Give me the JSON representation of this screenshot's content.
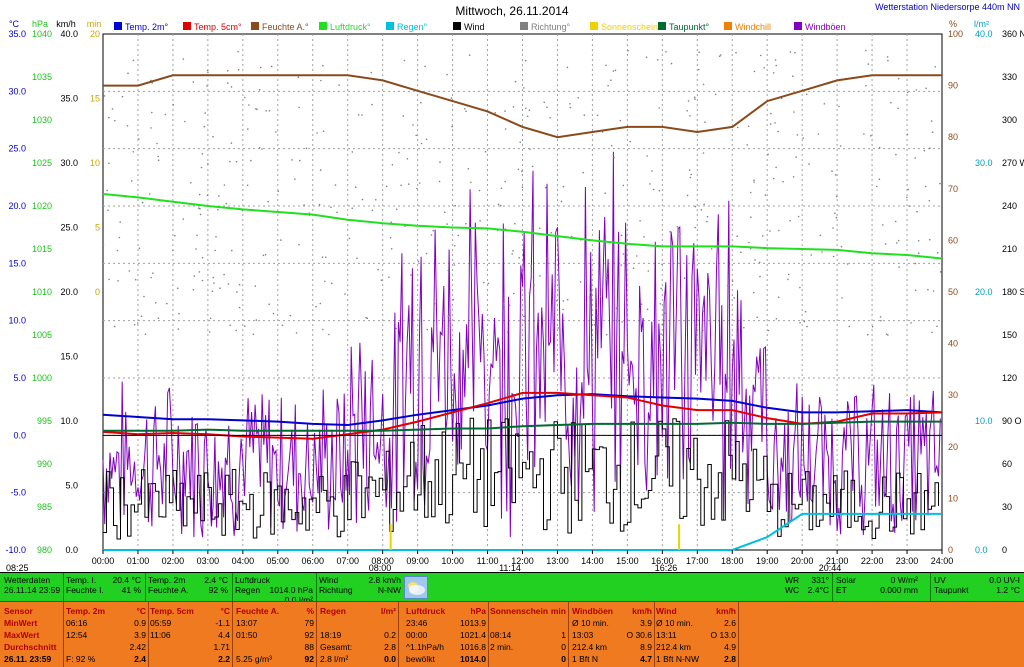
{
  "title": "Mittwoch, 26.11.2014",
  "station": "Wetterstation Niedersorpe 440m NN",
  "colors": {
    "temp2m": "#0000d0",
    "temp5cm": "#e00000",
    "feuchte": "#8b4a1a",
    "luftdruck": "#20e020",
    "regen": "#00c0e0",
    "wind": "#000000",
    "richtung": "#808080",
    "sonne": "#f0d000",
    "taupunkt": "#006a30",
    "windchill": "#f08000",
    "windboeen": "#8000c0"
  },
  "legend": [
    "Temp. 2m°",
    "Temp. 5cm°",
    "Feuchte A.°",
    "Luftdruck°",
    "Regen°",
    "Wind",
    "Richtung°",
    "Sonnenschein",
    "Taupunkt°",
    "Windchill",
    "Windböen"
  ],
  "axis_units": {
    "celsius": "°C",
    "hpa": "hPa",
    "kmh": "km/h",
    "min": "min",
    "percent": "%",
    "lm2": "l/m²",
    "deg": "360 N"
  },
  "left_axes": {
    "celsius": [
      "35.0",
      "30.0",
      "25.0",
      "20.0",
      "15.0",
      "10.0",
      "5.0",
      "0.0",
      "-5.0",
      "-10.0"
    ],
    "hpa": [
      "1040",
      "1035",
      "1030",
      "1025",
      "1020",
      "1015",
      "1010",
      "1005",
      "1000",
      "995",
      "990",
      "985",
      "980"
    ],
    "kmh": [
      "40.0",
      "35.0",
      "30.0",
      "25.0",
      "20.0",
      "15.0",
      "10.0",
      "5.0",
      "0.0"
    ],
    "min": [
      "20",
      "15",
      "10",
      "5",
      "0"
    ]
  },
  "right_axes": {
    "percent": [
      "100",
      "90",
      "80",
      "70",
      "60",
      "50",
      "40",
      "30",
      "20",
      "10",
      "0"
    ],
    "lm2": [
      "40.0",
      "30.0",
      "20.0",
      "10.0",
      "0.0"
    ],
    "deg": [
      "330",
      "300",
      "270 W",
      "240",
      "210",
      "180 S",
      "150",
      "120",
      "90 O",
      "60",
      "30",
      "0"
    ]
  },
  "sun_markers": {
    "rise": "08:25",
    "set": "20:44",
    "noon1": "11:14",
    "noon2": "16:26",
    "b": "08:00",
    "c": "8:00"
  },
  "chart_data": {
    "type": "line",
    "title": "Mittwoch, 26.11.2014",
    "x_ticks": [
      "00:00",
      "01:00",
      "02:00",
      "03:00",
      "04:00",
      "05:00",
      "06:00",
      "07:00",
      "08:00",
      "09:00",
      "10:00",
      "11:00",
      "12:00",
      "13:00",
      "14:00",
      "15:00",
      "16:00",
      "17:00",
      "18:00",
      "19:00",
      "20:00",
      "21:00",
      "22:00",
      "23:00",
      "24:00"
    ],
    "x_hours": [
      0,
      1,
      2,
      3,
      4,
      5,
      6,
      7,
      8,
      9,
      10,
      11,
      12,
      13,
      14,
      15,
      16,
      17,
      18,
      19,
      20,
      21,
      22,
      23,
      24
    ],
    "series": [
      {
        "name": "Temp. 2m°",
        "unit": "°C",
        "values": [
          1.8,
          1.6,
          1.4,
          1.4,
          1.3,
          1.2,
          1.0,
          0.9,
          1.3,
          1.8,
          2.2,
          2.6,
          3.2,
          3.5,
          3.6,
          3.4,
          3.3,
          3.2,
          3.0,
          2.4,
          2.0,
          2.0,
          2.1,
          2.2,
          2.0
        ]
      },
      {
        "name": "Temp. 5cm°",
        "unit": "°C",
        "values": [
          0.3,
          0.1,
          0.2,
          0.1,
          -0.1,
          -0.2,
          -0.3,
          0.1,
          0.5,
          1.2,
          2.0,
          2.8,
          3.7,
          3.7,
          3.5,
          3.3,
          2.6,
          2.2,
          2.2,
          1.5,
          1.0,
          1.2,
          1.9,
          1.9,
          2.0
        ]
      },
      {
        "name": "Feuchte A.°",
        "unit": "%",
        "values": [
          90,
          90,
          92,
          92,
          92,
          92,
          92,
          92,
          91,
          89,
          87,
          85,
          82,
          80,
          81,
          82,
          82,
          81,
          82,
          87,
          89,
          91,
          92,
          92,
          92
        ]
      },
      {
        "name": "Luftdruck°",
        "unit": "hPa",
        "values": [
          1021.4,
          1021.0,
          1020.5,
          1020.0,
          1019.6,
          1019.3,
          1019.0,
          1018.4,
          1018.0,
          1017.7,
          1017.5,
          1017.4,
          1017.0,
          1016.5,
          1016.0,
          1015.6,
          1015.3,
          1015.3,
          1015.3,
          1015.1,
          1015.0,
          1014.9,
          1014.5,
          1014.3,
          1013.9
        ]
      },
      {
        "name": "Taupunkt°",
        "unit": "°C",
        "values": [
          0.4,
          0.4,
          0.4,
          0.5,
          0.4,
          0.4,
          0.4,
          0.4,
          0.4,
          0.5,
          0.6,
          0.6,
          0.8,
          0.9,
          1.0,
          1.0,
          1.0,
          1.0,
          1.1,
          1.0,
          1.0,
          1.1,
          1.2,
          1.2,
          1.2
        ]
      },
      {
        "name": "Regen°",
        "unit": "l/m²",
        "values": [
          0,
          0,
          0,
          0,
          0,
          0,
          0,
          0,
          0,
          0,
          0,
          0,
          0,
          0,
          0,
          0,
          0,
          0,
          0,
          1.0,
          2.8,
          2.8,
          2.8,
          2.8,
          2.8
        ]
      }
    ],
    "xlabel": "",
    "ylabel": "",
    "ylim": [
      -10,
      35
    ]
  },
  "green_bar": {
    "wetterdaten": "Wetterdaten",
    "datetime": "26.11.14 23:59",
    "temp_i_label": "Temp. I.",
    "temp_i_val": "20.4 °C",
    "feuchte_i_label": "Feuchte I.",
    "feuchte_i_val": "41 %",
    "temp2m_label": "Temp. 2m",
    "temp2m_val": "2.4 °C",
    "feuchte_a_label": "Feuchte A.",
    "feuchte_a_val": "92 %",
    "luftdruck_label": "Luftdruck",
    "luftdruck_val": "1014.0 hPa",
    "regen_label": "Regen",
    "regen_val": "0.0 l/m²",
    "wind_label": "Wind",
    "wind_val": "2.8 km/h",
    "richtung_label": "Richtung",
    "richtung_val": "N-NW",
    "wr_label": "WR",
    "wr_val": "331°",
    "wc_label": "WC",
    "wc_val": "2.4°C",
    "solar_label": "Solar",
    "solar_val": "0 W/m²",
    "et_label": "ET",
    "et_val": "0.000 mm",
    "uv_label": "UV",
    "uv_val": "0.0 UV-I",
    "taupunkt_label": "Taupunkt",
    "taupunkt_val": "1.2 °C"
  },
  "stats": {
    "sensor": {
      "hdr": "Sensor",
      "rows": [
        "MinWert",
        "MaxWert",
        "Durchschnitt",
        "26.11. 23:59"
      ]
    },
    "temp2m": {
      "hdr": "Temp. 2m",
      "unit": "°C",
      "rows": [
        [
          "06:16",
          "0.9"
        ],
        [
          "12:54",
          "3.9"
        ],
        [
          "",
          "2.42"
        ],
        [
          "F: 92 %",
          "2.4"
        ]
      ]
    },
    "temp5cm": {
      "hdr": "Temp. 5cm",
      "unit": "°C",
      "rows": [
        [
          "05:59",
          "-1.1"
        ],
        [
          "11:06",
          "4.4"
        ],
        [
          "",
          "1.71"
        ],
        [
          "",
          "2.2"
        ]
      ]
    },
    "feuchte": {
      "hdr": "Feuchte A.",
      "unit": "%",
      "rows": [
        [
          "13:07",
          "79"
        ],
        [
          "01:50",
          "92"
        ],
        [
          "",
          "88"
        ],
        [
          "5.25 g/m³",
          "92"
        ]
      ]
    },
    "regen": {
      "hdr": "Regen",
      "unit": "l/m²",
      "rows": [
        [
          "18:19",
          "0.2"
        ],
        [
          "Gesamt:",
          "2.8"
        ],
        [
          "2.8 l/m²",
          "0.0"
        ]
      ]
    },
    "luftdruck": {
      "hdr": "Luftdruck",
      "unit": "hPa",
      "rows": [
        [
          "23:46",
          "1013.9"
        ],
        [
          "00:00",
          "1021.4"
        ],
        [
          "^1.1hPa/h",
          "1016.8"
        ],
        [
          "bewölkt",
          "1014.0"
        ]
      ]
    },
    "sonne": {
      "hdr": "Sonnenschein",
      "unit": "min",
      "rows": [
        [
          "08:14",
          "1"
        ],
        [
          "2 min.",
          "0"
        ],
        [
          "",
          "0"
        ]
      ]
    },
    "windboeen": {
      "hdr": "Windböen",
      "unit": "km/h",
      "rows": [
        [
          "Ø 10 min.",
          "3.9"
        ],
        [
          "13:03",
          "O 30.6"
        ],
        [
          "212.4 km",
          "8.9"
        ],
        [
          "1 Bft N",
          "4.7"
        ]
      ]
    },
    "wind": {
      "hdr": "Wind",
      "unit": "km/h",
      "rows": [
        [
          "Ø 10 min.",
          "2.6"
        ],
        [
          "13:11",
          "O 13.0"
        ],
        [
          "212.4 km",
          "4.9"
        ],
        [
          "1 Bft N-NW",
          "2.8"
        ]
      ]
    }
  }
}
